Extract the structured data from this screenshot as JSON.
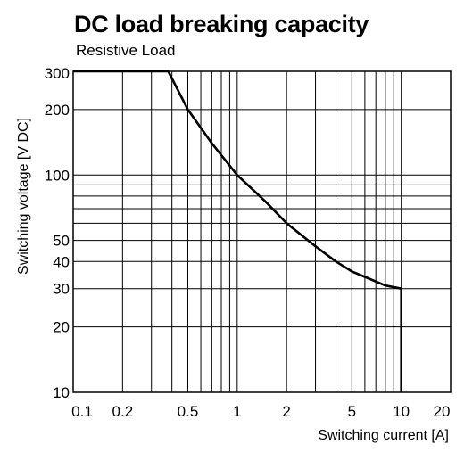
{
  "chart_data": {
    "type": "line",
    "title": "DC load breaking capacity",
    "subtitle": "Resistive Load",
    "xlabel": "Switching current [A]",
    "ylabel": "Switching voltage [V DC]",
    "x_scale": "log",
    "y_scale": "log",
    "xlim": [
      0.1,
      20
    ],
    "ylim": [
      10,
      300
    ],
    "x_ticks": [
      0.1,
      0.2,
      0.5,
      1,
      2,
      5,
      10,
      20
    ],
    "x_tick_labels": [
      "0.1",
      "0.2",
      "0.5",
      "1",
      "2",
      "5",
      "10",
      "20"
    ],
    "y_ticks": [
      10,
      20,
      30,
      40,
      50,
      100,
      200,
      300
    ],
    "y_tick_labels": [
      "10",
      "20",
      "30",
      "40",
      "50",
      "100",
      "200",
      "300"
    ],
    "x_gridlines": [
      0.2,
      0.3,
      0.4,
      0.5,
      0.6,
      0.7,
      0.8,
      0.9,
      1,
      2,
      3,
      4,
      5,
      6,
      7,
      8,
      9,
      10
    ],
    "y_gridlines": [
      20,
      30,
      40,
      50,
      60,
      70,
      80,
      90,
      100,
      200
    ],
    "grid": true,
    "series": [
      {
        "x": [
          0.1,
          0.38,
          0.5,
          0.7,
          1,
          1.5,
          2,
          3,
          4,
          5,
          6,
          8,
          10,
          10
        ],
        "y": [
          300,
          300,
          200,
          140,
          100,
          75,
          60,
          47,
          40,
          36,
          34,
          31,
          30,
          10
        ]
      }
    ]
  }
}
